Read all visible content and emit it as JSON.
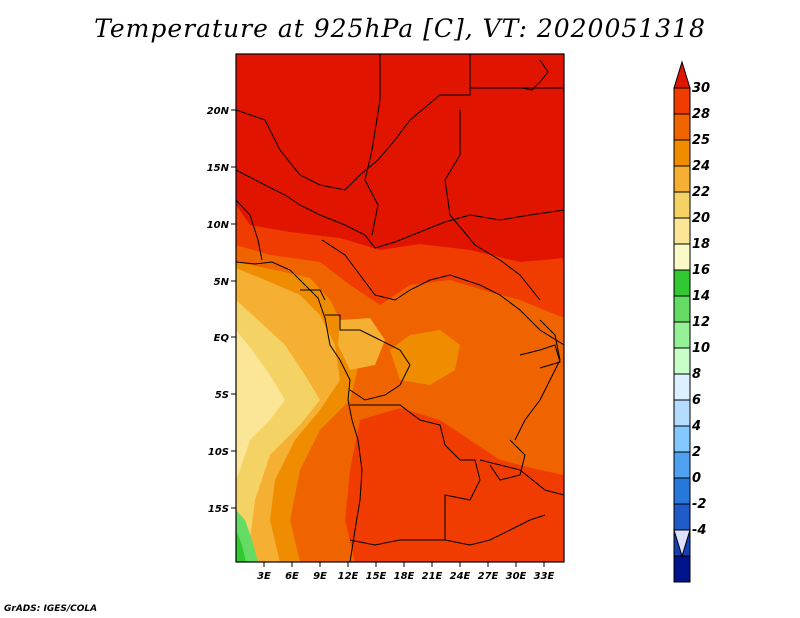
{
  "title": "Temperature at 925hPa [C], VT: 2020051318",
  "credit": "GrADS: IGES/COLA",
  "map": {
    "variable": "Temperature",
    "level": "925hPa",
    "units": "C",
    "valid_time": "2020051318",
    "lat_labels": [
      "20N",
      "15N",
      "10N",
      "5N",
      "EQ",
      "5S",
      "10S",
      "15S"
    ],
    "lon_labels": [
      "3E",
      "6E",
      "9E",
      "12E",
      "15E",
      "18E",
      "21E",
      "24E",
      "27E",
      "30E",
      "33E"
    ]
  },
  "colorbar": {
    "labels": [
      "30",
      "28",
      "25",
      "24",
      "22",
      "20",
      "18",
      "16",
      "14",
      "12",
      "10",
      "8",
      "6",
      "4",
      "2",
      "0",
      "-2",
      "-4"
    ],
    "colors": [
      "#e11400",
      "#f03c00",
      "#f06400",
      "#f08c00",
      "#f5af32",
      "#f5d264",
      "#fae696",
      "#fafac8",
      "#32c832",
      "#64dc64",
      "#96f096",
      "#c8ffc8",
      "#dcf0ff",
      "#b4dcff",
      "#82c8ff",
      "#50a0f0",
      "#2878dc",
      "#1e5ac8",
      "#1440b4",
      "#00148c",
      "#e0e0ff"
    ]
  }
}
